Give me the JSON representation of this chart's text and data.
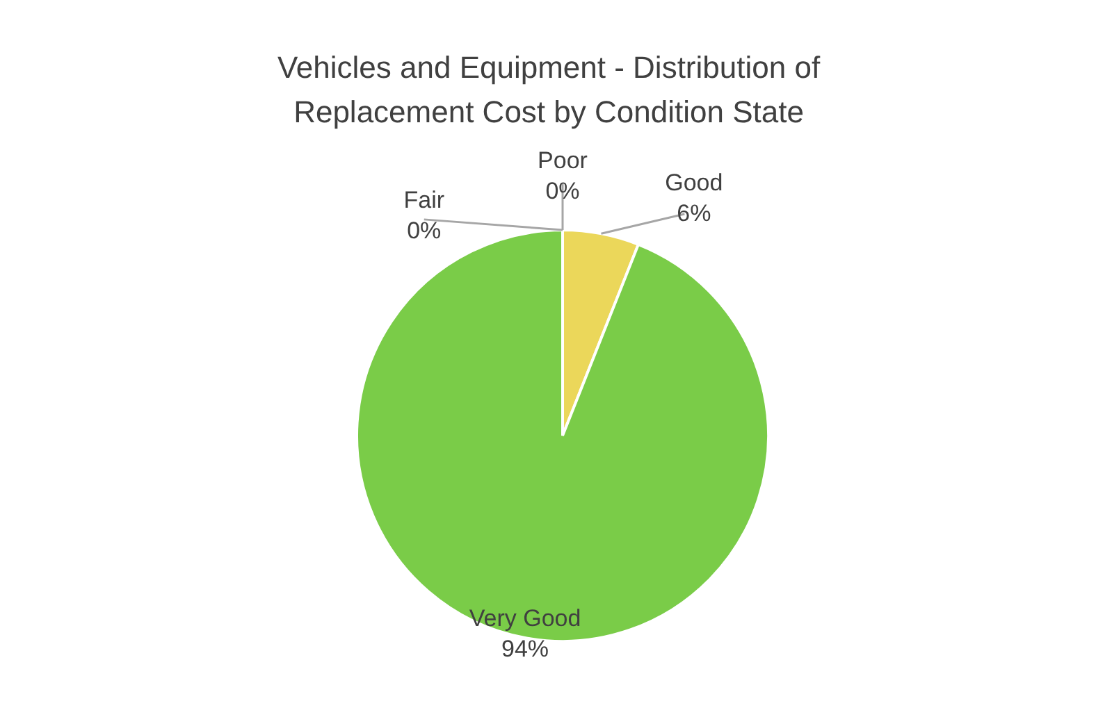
{
  "chart_data": {
    "type": "pie",
    "title": "Vehicles and Equipment - Distribution of Replacement Cost by Condition State",
    "categories": [
      "Good",
      "Very Good",
      "Fair",
      "Poor"
    ],
    "values": [
      6,
      94,
      0,
      0
    ],
    "colors": [
      "#ebd75a",
      "#7acc48",
      "#5b9bd5",
      "#ed7d31"
    ],
    "value_labels": [
      "6%",
      "94%",
      "0%",
      "0%"
    ],
    "legend": false
  }
}
